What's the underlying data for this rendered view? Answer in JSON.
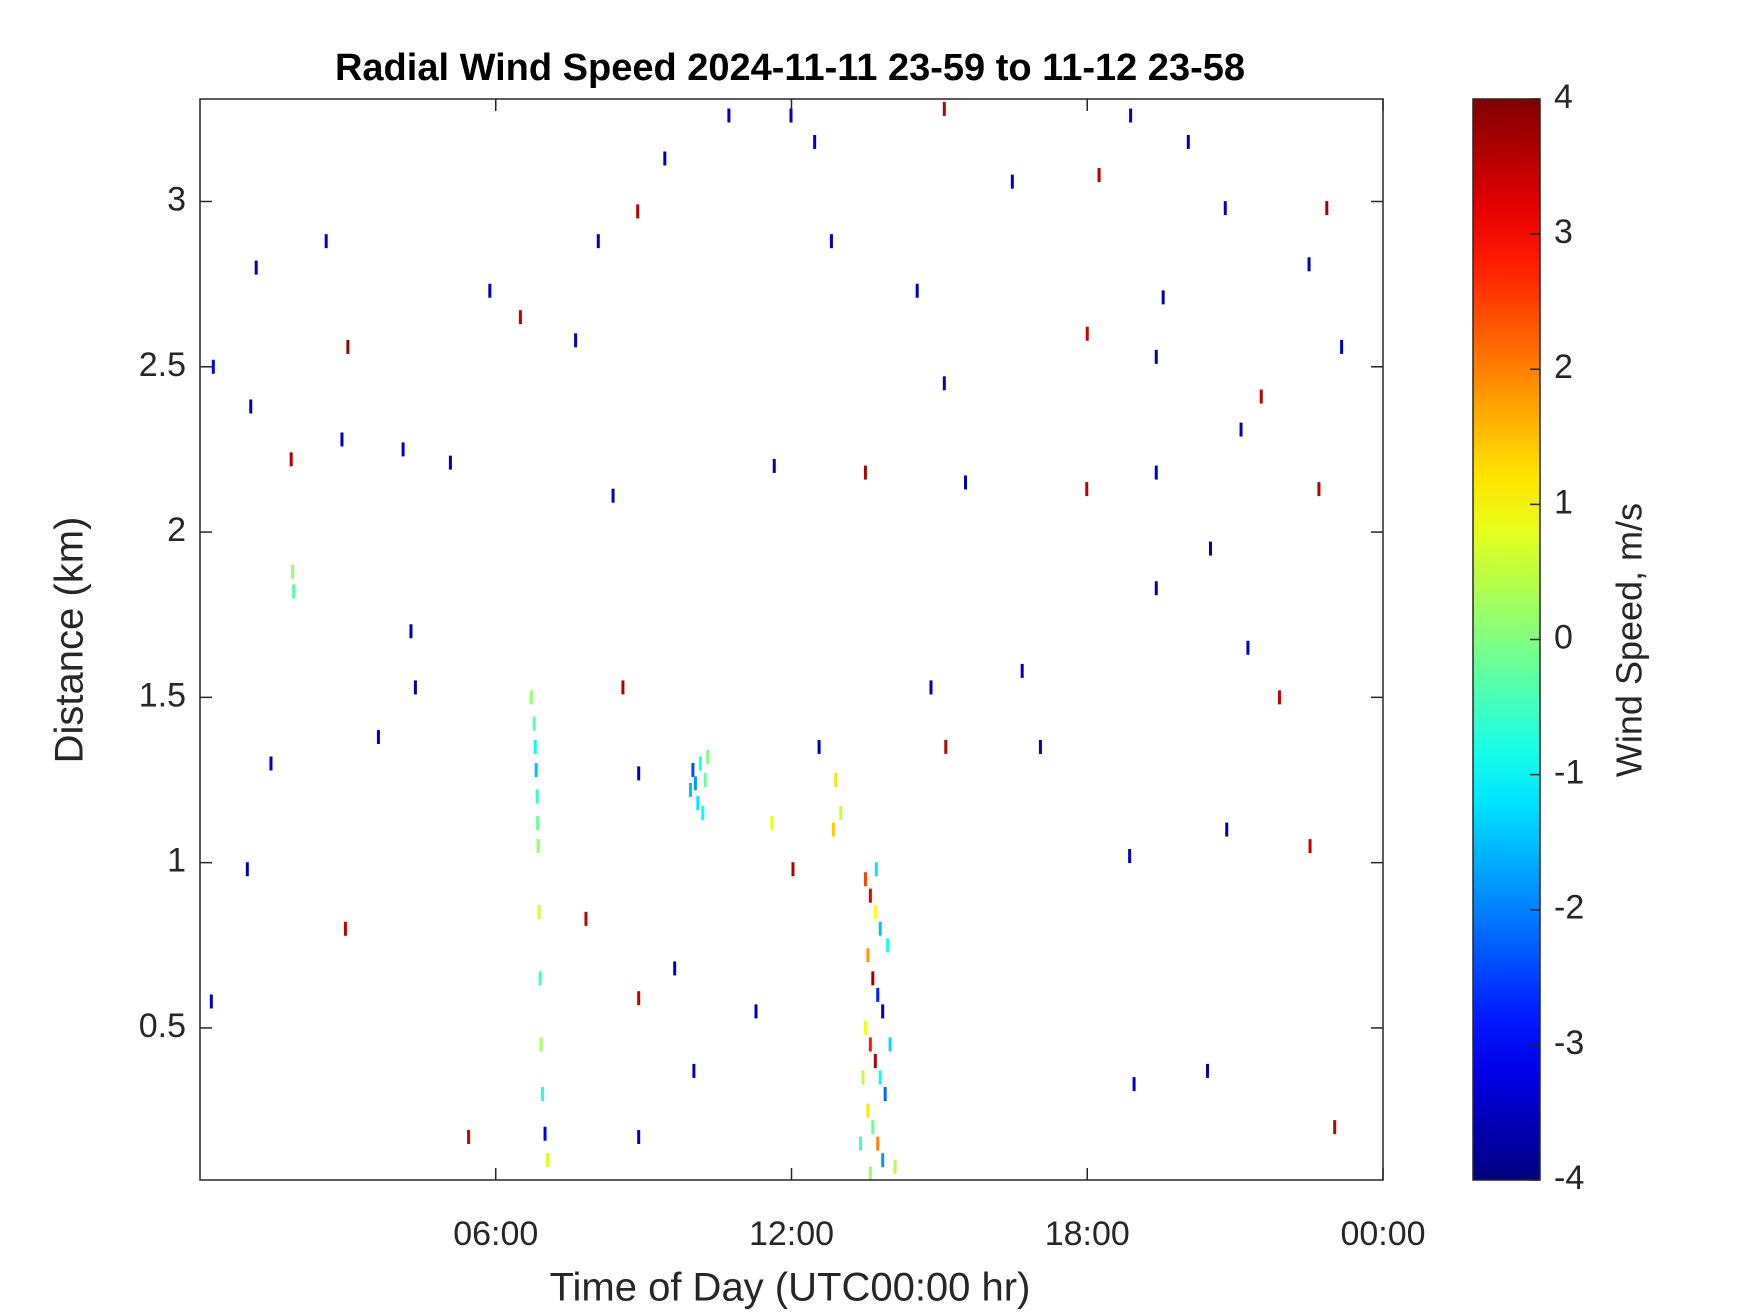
{
  "chart_data": {
    "type": "scatter-heatmap",
    "title": "Radial Wind Speed 2024-11-11 23-59 to 11-12 23-58",
    "xlabel": "Time of Day (UTC00:00 hr)",
    "ylabel": "Distance (km)",
    "colorbar_label": "Wind Speed, m/s",
    "colormap": "jet",
    "xlim": [
      0,
      24
    ],
    "ylim": [
      0.04,
      3.31
    ],
    "clim": [
      -4,
      4
    ],
    "xticks": [
      {
        "value": 6,
        "label": "06:00"
      },
      {
        "value": 12,
        "label": "12:00"
      },
      {
        "value": 18,
        "label": "18:00"
      },
      {
        "value": 24,
        "label": "00:00"
      }
    ],
    "yticks": [
      0.5,
      1,
      1.5,
      2,
      2.5,
      3
    ],
    "cticks": [
      -4,
      -3,
      -2,
      -1,
      0,
      1,
      2,
      3,
      4
    ],
    "x": [
      2.56,
      1.14,
      0.27,
      3.0,
      1.03,
      1.85,
      2.88,
      4.12,
      5.08,
      5.88,
      6.5,
      7.62,
      8.08,
      8.88,
      9.43,
      10.73,
      11.99,
      12.47,
      12.81,
      14.55,
      15.1,
      16.48,
      18.24,
      18.88,
      20.05,
      20.8,
      22.86,
      22.5,
      19.54,
      18.0,
      19.4,
      23.16,
      21.53,
      21.12,
      15.1,
      15.53,
      11.65,
      13.5,
      17.99,
      19.4,
      22.7,
      20.5,
      19.4,
      16.68,
      14.83,
      17.05,
      15.13,
      12.56,
      18.86,
      20.83,
      22.52,
      21.9,
      21.26,
      1.44,
      0.96,
      0.23,
      2.95,
      3.62,
      4.37,
      4.28,
      8.38,
      8.58,
      8.9,
      8.9,
      7.83,
      9.63,
      10.02,
      11.28,
      12.03,
      18.95,
      20.44,
      23.02,
      5.45,
      8.9,
      6.72,
      6.78,
      6.8,
      6.82,
      6.84,
      6.85,
      6.86,
      6.88,
      6.9,
      6.92,
      6.95,
      7.0,
      7.05,
      1.88,
      1.9,
      9.95,
      10.0,
      10.05,
      10.1,
      10.15,
      10.2,
      10.25,
      10.3,
      11.6,
      12.9,
      13.0,
      12.85,
      13.5,
      13.6,
      13.7,
      13.8,
      13.55,
      13.65,
      13.75,
      13.85,
      13.5,
      13.6,
      13.7,
      13.8,
      13.9,
      13.55,
      13.65,
      13.75,
      13.85,
      13.6,
      13.95,
      14.0,
      13.45,
      13.4,
      14.1,
      13.72
    ],
    "y": [
      2.88,
      2.8,
      2.5,
      2.56,
      2.38,
      2.22,
      2.28,
      2.25,
      2.21,
      2.73,
      2.65,
      2.58,
      2.88,
      2.97,
      3.13,
      3.26,
      3.26,
      3.18,
      2.88,
      2.73,
      3.28,
      3.06,
      3.08,
      3.26,
      3.18,
      2.98,
      2.98,
      2.81,
      2.71,
      2.6,
      2.53,
      2.56,
      2.41,
      2.31,
      2.45,
      2.15,
      2.2,
      2.18,
      2.13,
      2.18,
      2.13,
      1.95,
      1.83,
      1.58,
      1.53,
      1.35,
      1.35,
      1.35,
      1.02,
      1.1,
      1.05,
      1.5,
      1.65,
      1.3,
      0.98,
      0.58,
      0.8,
      1.38,
      1.53,
      1.7,
      2.11,
      1.53,
      1.27,
      0.59,
      0.83,
      0.68,
      0.37,
      0.55,
      0.98,
      0.33,
      0.37,
      0.2,
      0.17,
      0.17,
      1.5,
      1.42,
      1.35,
      1.28,
      1.2,
      1.12,
      1.05,
      0.85,
      0.65,
      0.45,
      0.3,
      0.18,
      0.1,
      1.88,
      1.82,
      1.22,
      1.28,
      1.24,
      1.18,
      1.3,
      1.15,
      1.25,
      1.32,
      1.12,
      1.25,
      1.15,
      1.1,
      0.95,
      0.9,
      0.85,
      0.8,
      0.72,
      0.65,
      0.6,
      0.55,
      0.5,
      0.45,
      0.4,
      0.35,
      0.3,
      0.25,
      0.2,
      0.15,
      0.1,
      0.06,
      0.75,
      0.45,
      0.35,
      0.15,
      0.08,
      0.98
    ],
    "values": [
      -3.5,
      -3.5,
      -3.2,
      3.8,
      -3.6,
      3.6,
      -3.4,
      -3.5,
      -3.6,
      -3.5,
      3.5,
      -3.4,
      -3.5,
      3.6,
      -3.6,
      -3.5,
      -3.5,
      -3.4,
      -3.5,
      -3.6,
      3.5,
      -3.5,
      3.6,
      -3.5,
      -3.6,
      -3.5,
      3.7,
      -3.5,
      -3.5,
      3.4,
      -3.6,
      -3.4,
      3.5,
      -3.6,
      -3.5,
      -3.6,
      -3.5,
      3.6,
      3.5,
      -3.5,
      3.6,
      -3.5,
      -3.6,
      -3.5,
      -3.6,
      -3.5,
      3.5,
      -3.6,
      -3.5,
      -3.6,
      3.5,
      3.4,
      -3.5,
      -3.5,
      -3.6,
      -3.5,
      3.5,
      -3.5,
      -3.6,
      -3.5,
      -3.5,
      3.6,
      -3.5,
      3.5,
      3.5,
      -3.5,
      -3.5,
      -3.6,
      3.6,
      -3.5,
      -3.6,
      3.5,
      3.5,
      -3.5,
      0.2,
      -0.3,
      -1.0,
      -1.5,
      -0.6,
      -0.2,
      0.1,
      0.6,
      -0.5,
      0.3,
      -0.8,
      -3.2,
      0.8,
      0.2,
      -0.3,
      -1.5,
      -2.4,
      -1.8,
      -1.2,
      -0.8,
      -1.0,
      -0.2,
      0.0,
      0.8,
      1.2,
      0.6,
      1.4,
      2.5,
      3.2,
      1.0,
      -1.5,
      1.8,
      3.8,
      -2.8,
      -3.5,
      0.9,
      2.8,
      3.6,
      -1.0,
      -2.2,
      1.2,
      -0.2,
      2.0,
      -1.8,
      0.2,
      -0.8,
      -1.3,
      0.5,
      -0.5,
      0.4,
      -1.2
    ]
  }
}
